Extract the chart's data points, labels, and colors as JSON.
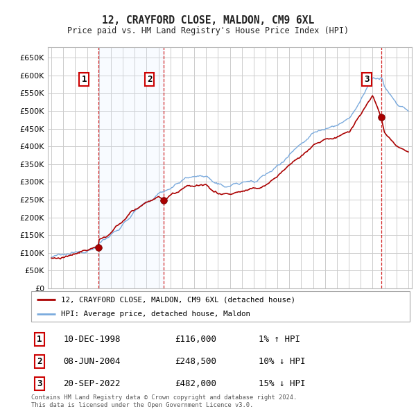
{
  "title": "12, CRAYFORD CLOSE, MALDON, CM9 6XL",
  "subtitle": "Price paid vs. HM Land Registry's House Price Index (HPI)",
  "ylim": [
    0,
    680000
  ],
  "yticks": [
    0,
    50000,
    100000,
    150000,
    200000,
    250000,
    300000,
    350000,
    400000,
    450000,
    500000,
    550000,
    600000,
    650000
  ],
  "xlim_start": 1994.7,
  "xlim_end": 2025.3,
  "sale_dates": [
    1998.94,
    2004.44,
    2022.72
  ],
  "sale_prices": [
    116000,
    248500,
    482000
  ],
  "sale_labels": [
    "1",
    "2",
    "3"
  ],
  "sale_annotations": [
    {
      "label": "1",
      "date": "10-DEC-1998",
      "price": "£116,000",
      "hpi": "1% ↑ HPI"
    },
    {
      "label": "2",
      "date": "08-JUN-2004",
      "price": "£248,500",
      "hpi": "10% ↓ HPI"
    },
    {
      "label": "3",
      "date": "20-SEP-2022",
      "price": "£482,000",
      "hpi": "15% ↓ HPI"
    }
  ],
  "legend_property": "12, CRAYFORD CLOSE, MALDON, CM9 6XL (detached house)",
  "legend_hpi": "HPI: Average price, detached house, Maldon",
  "footer": "Contains HM Land Registry data © Crown copyright and database right 2024.\nThis data is licensed under the Open Government Licence v3.0.",
  "property_color": "#aa0000",
  "hpi_color": "#7aaadd",
  "background_color": "#ffffff",
  "plot_bg_color": "#ffffff",
  "grid_color": "#cccccc",
  "vline_color": "#cc0000",
  "highlight_color": "#ddeeff",
  "label_box_color": "#ffffff",
  "label_box_edge": "#cc0000",
  "hpi_anchors_x": [
    1995,
    1996,
    1997,
    1998,
    1999,
    2000,
    2001,
    2002,
    2003,
    2004,
    2005,
    2006,
    2007,
    2008,
    2009,
    2010,
    2011,
    2012,
    2013,
    2014,
    2015,
    2016,
    2017,
    2018,
    2019,
    2020,
    2021,
    2022,
    2022.8,
    2023,
    2024,
    2025
  ],
  "hpi_anchors_y": [
    88000,
    93000,
    100000,
    108000,
    125000,
    150000,
    180000,
    215000,
    240000,
    265000,
    285000,
    305000,
    315000,
    318000,
    288000,
    290000,
    298000,
    303000,
    318000,
    345000,
    378000,
    408000,
    438000,
    452000,
    462000,
    475000,
    530000,
    590000,
    595000,
    568000,
    520000,
    500000
  ],
  "prop_anchors_x": [
    1995,
    1996,
    1997,
    1998,
    1998.94,
    1999,
    2000,
    2001,
    2002,
    2003,
    2004,
    2004.44,
    2005,
    2006,
    2007,
    2008,
    2009,
    2010,
    2011,
    2012,
    2013,
    2014,
    2015,
    2016,
    2017,
    2018,
    2019,
    2020,
    2021,
    2022,
    2022.72,
    2023,
    2024,
    2025
  ],
  "prop_anchors_y": [
    84000,
    88000,
    96000,
    106000,
    116000,
    134000,
    159000,
    190000,
    222000,
    244000,
    258000,
    248500,
    262000,
    280000,
    290000,
    292000,
    265000,
    267000,
    273000,
    278000,
    291000,
    316000,
    348000,
    374000,
    402000,
    418000,
    428000,
    440000,
    490000,
    545000,
    482000,
    440000,
    400000,
    385000
  ]
}
